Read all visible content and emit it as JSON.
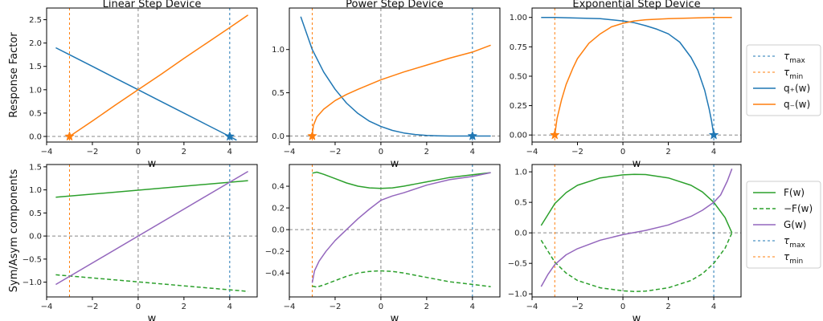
{
  "chart_data": [
    {
      "type": "line",
      "title": "Linear Step Device",
      "xlabel": "w",
      "ylabel": "Response Factor",
      "xlim": [
        -4,
        5.2
      ],
      "ylim": [
        -0.12,
        2.75
      ],
      "xticks": [
        -4,
        -2,
        0,
        2,
        4
      ],
      "xtick_labels": [
        "−4",
        "−2",
        "0",
        "2",
        "4"
      ],
      "yticks": [
        0,
        0.5,
        1,
        1.5,
        2,
        2.5
      ],
      "ytick_labels": [
        "0.0",
        "0.5",
        "1.0",
        "1.5",
        "2.0",
        "2.5"
      ],
      "tau_max": 4,
      "tau_min": -3,
      "series": [
        {
          "name": "q₊(w)",
          "color": "#1f77b4",
          "x": [
            -3.6,
            -3.0,
            -2.0,
            -1.0,
            0.0,
            1.0,
            2.0,
            3.0,
            4.0,
            4.3
          ],
          "y": [
            1.9,
            1.75,
            1.5,
            1.25,
            1.0,
            0.75,
            0.5,
            0.25,
            0.0,
            -0.08
          ]
        },
        {
          "name": "q₋(w)",
          "color": "#ff7f0e",
          "x": [
            -3.0,
            -2.0,
            -1.0,
            0.0,
            1.0,
            2.0,
            3.0,
            4.0,
            4.8
          ],
          "y": [
            0.0,
            0.33,
            0.67,
            1.0,
            1.33,
            1.67,
            2.0,
            2.33,
            2.6
          ]
        }
      ],
      "markers": [
        {
          "x": -3,
          "y": 0,
          "color": "#ff7f0e"
        },
        {
          "x": 4,
          "y": 0,
          "color": "#1f77b4"
        }
      ]
    },
    {
      "type": "line",
      "title": "Power Step Device",
      "xlabel": "w",
      "ylabel": "",
      "xlim": [
        -4,
        5.2
      ],
      "ylim": [
        -0.07,
        1.48
      ],
      "xticks": [
        -4,
        -2,
        0,
        2,
        4
      ],
      "xtick_labels": [
        "−4",
        "−2",
        "0",
        "2",
        "4"
      ],
      "yticks": [
        0,
        0.5,
        1
      ],
      "ytick_labels": [
        "0.0",
        "0.5",
        "1.0"
      ],
      "tau_max": 4,
      "tau_min": -3,
      "series": [
        {
          "name": "q₊(w)",
          "color": "#1f77b4",
          "x": [
            -3.5,
            -3.0,
            -2.5,
            -2.0,
            -1.5,
            -1.0,
            -0.5,
            0.0,
            0.5,
            1.0,
            1.5,
            2.0,
            2.5,
            3.0,
            3.5,
            4.0,
            4.8
          ],
          "y": [
            1.38,
            1.0,
            0.74,
            0.54,
            0.38,
            0.26,
            0.17,
            0.11,
            0.065,
            0.035,
            0.017,
            0.007,
            0.002,
            0.0,
            0.0,
            0.0,
            0.0
          ]
        },
        {
          "name": "q₋(w)",
          "color": "#ff7f0e",
          "x": [
            -3.0,
            -2.95,
            -2.8,
            -2.5,
            -2.0,
            -1.5,
            -1.0,
            0.0,
            1.0,
            2.0,
            3.0,
            4.0,
            4.8
          ],
          "y": [
            0.0,
            0.12,
            0.22,
            0.31,
            0.41,
            0.48,
            0.54,
            0.65,
            0.74,
            0.82,
            0.9,
            0.97,
            1.05
          ]
        }
      ],
      "markers": [
        {
          "x": -3,
          "y": 0,
          "color": "#ff7f0e"
        },
        {
          "x": 4,
          "y": 0,
          "color": "#1f77b4"
        }
      ]
    },
    {
      "type": "line",
      "title": "Exponential Step Device",
      "xlabel": "w",
      "ylabel": "",
      "xlim": [
        -4,
        5.2
      ],
      "ylim": [
        -0.06,
        1.08
      ],
      "xticks": [
        -4,
        -2,
        0,
        2,
        4
      ],
      "xtick_labels": [
        "−4",
        "−2",
        "0",
        "2",
        "4"
      ],
      "yticks": [
        0,
        0.25,
        0.5,
        0.75,
        1
      ],
      "ytick_labels": [
        "0.00",
        "0.25",
        "0.50",
        "0.75",
        "1.00"
      ],
      "tau_max": 4,
      "tau_min": -3,
      "series": [
        {
          "name": "q₊(w)",
          "color": "#1f77b4",
          "x": [
            -3.6,
            -3.0,
            -2.0,
            -1.0,
            0.0,
            0.5,
            1.0,
            1.5,
            2.0,
            2.5,
            3.0,
            3.3,
            3.6,
            3.8,
            3.9,
            4.0
          ],
          "y": [
            1.0,
            1.0,
            0.995,
            0.99,
            0.97,
            0.955,
            0.93,
            0.9,
            0.86,
            0.79,
            0.66,
            0.55,
            0.38,
            0.22,
            0.12,
            0.0
          ]
        },
        {
          "name": "q₋(w)",
          "color": "#ff7f0e",
          "x": [
            -3.0,
            -2.9,
            -2.7,
            -2.5,
            -2.2,
            -2.0,
            -1.5,
            -1.0,
            -0.5,
            0.0,
            0.5,
            1.0,
            2.0,
            3.0,
            4.0,
            4.8
          ],
          "y": [
            0.0,
            0.14,
            0.3,
            0.43,
            0.57,
            0.65,
            0.78,
            0.86,
            0.92,
            0.95,
            0.97,
            0.98,
            0.99,
            0.995,
            1.0,
            1.0
          ]
        }
      ],
      "markers": [
        {
          "x": -3,
          "y": 0,
          "color": "#ff7f0e"
        },
        {
          "x": 4,
          "y": 0,
          "color": "#1f77b4"
        }
      ]
    },
    {
      "type": "line",
      "title": "",
      "xlabel": "w",
      "ylabel": "Sym/Asym components",
      "xlim": [
        -4,
        5.2
      ],
      "ylim": [
        -1.32,
        1.55
      ],
      "xticks": [
        -4,
        -2,
        0,
        2,
        4
      ],
      "xtick_labels": [
        "−4",
        "−2",
        "0",
        "2",
        "4"
      ],
      "yticks": [
        -1,
        -0.5,
        0,
        0.5,
        1,
        1.5
      ],
      "ytick_labels": [
        "−1.0",
        "−0.5",
        "0.0",
        "0.5",
        "1.0",
        "1.5"
      ],
      "tau_max": 4,
      "tau_min": -3,
      "series": [
        {
          "name": "F(w)",
          "color": "#2ca02c",
          "dash": "",
          "x": [
            -3.6,
            4.8
          ],
          "y": [
            0.84,
            1.2
          ]
        },
        {
          "name": "−F(w)",
          "color": "#2ca02c",
          "dash": "5,3",
          "x": [
            -3.6,
            4.8
          ],
          "y": [
            -0.84,
            -1.2
          ]
        },
        {
          "name": "G(w)",
          "color": "#9467bd",
          "dash": "",
          "x": [
            -3.6,
            4.8
          ],
          "y": [
            -1.05,
            1.4
          ]
        }
      ]
    },
    {
      "type": "line",
      "title": "",
      "xlabel": "w",
      "ylabel": "",
      "xlim": [
        -4,
        5.2
      ],
      "ylim": [
        -0.62,
        0.6
      ],
      "xticks": [
        -4,
        -2,
        0,
        2,
        4
      ],
      "xtick_labels": [
        "−4",
        "−2",
        "0",
        "2",
        "4"
      ],
      "yticks": [
        -0.4,
        -0.2,
        0,
        0.2,
        0.4
      ],
      "ytick_labels": [
        "−0.4",
        "−0.2",
        "0.0",
        "0.2",
        "0.4"
      ],
      "tau_max": 4,
      "tau_min": -3,
      "series": [
        {
          "name": "F(w)",
          "color": "#2ca02c",
          "dash": "",
          "x": [
            -3.0,
            -2.8,
            -2.5,
            -2.0,
            -1.5,
            -1.0,
            -0.5,
            0.0,
            0.5,
            1.0,
            1.5,
            2.0,
            3.0,
            4.0,
            4.8
          ],
          "y": [
            0.52,
            0.53,
            0.51,
            0.47,
            0.43,
            0.4,
            0.385,
            0.38,
            0.385,
            0.4,
            0.42,
            0.44,
            0.48,
            0.505,
            0.525
          ]
        },
        {
          "name": "−F(w)",
          "color": "#2ca02c",
          "dash": "5,3",
          "x": [
            -3.0,
            -2.8,
            -2.5,
            -2.0,
            -1.5,
            -1.0,
            -0.5,
            0.0,
            0.5,
            1.0,
            1.5,
            2.0,
            3.0,
            4.0,
            4.8
          ],
          "y": [
            -0.52,
            -0.53,
            -0.51,
            -0.47,
            -0.43,
            -0.4,
            -0.385,
            -0.38,
            -0.385,
            -0.4,
            -0.42,
            -0.44,
            -0.48,
            -0.505,
            -0.525
          ]
        },
        {
          "name": "G(w)",
          "color": "#9467bd",
          "dash": "",
          "x": [
            -3.0,
            -2.9,
            -2.7,
            -2.4,
            -2.0,
            -1.5,
            -1.0,
            -0.5,
            0.0,
            0.5,
            1.0,
            2.0,
            3.0,
            4.0,
            4.8
          ],
          "y": [
            -0.49,
            -0.38,
            -0.29,
            -0.2,
            -0.1,
            0.0,
            0.1,
            0.19,
            0.27,
            0.31,
            0.34,
            0.41,
            0.46,
            0.49,
            0.525
          ]
        }
      ]
    },
    {
      "type": "line",
      "title": "",
      "xlabel": "w",
      "ylabel": "",
      "xlim": [
        -4,
        5.2
      ],
      "ylim": [
        -1.05,
        1.12
      ],
      "xticks": [
        -4,
        -2,
        0,
        2,
        4
      ],
      "xtick_labels": [
        "−4",
        "−2",
        "0",
        "2",
        "4"
      ],
      "yticks": [
        -1,
        -0.5,
        0,
        0.5,
        1
      ],
      "ytick_labels": [
        "−1.0",
        "−0.5",
        "0.0",
        "0.5",
        "1.0"
      ],
      "tau_max": 4,
      "tau_min": -3,
      "series": [
        {
          "name": "F(w)",
          "color": "#2ca02c",
          "dash": "",
          "x": [
            -3.6,
            -3.3,
            -3.0,
            -2.5,
            -2.0,
            -1.0,
            0.0,
            0.5,
            1.0,
            2.0,
            3.0,
            3.5,
            4.0,
            4.5,
            4.8
          ],
          "y": [
            0.12,
            0.3,
            0.48,
            0.66,
            0.78,
            0.9,
            0.95,
            0.96,
            0.955,
            0.9,
            0.78,
            0.67,
            0.5,
            0.25,
            0.0
          ]
        },
        {
          "name": "−F(w)",
          "color": "#2ca02c",
          "dash": "5,3",
          "x": [
            -3.6,
            -3.3,
            -3.0,
            -2.5,
            -2.0,
            -1.0,
            0.0,
            0.5,
            1.0,
            2.0,
            3.0,
            3.5,
            4.0,
            4.5,
            4.8
          ],
          "y": [
            -0.12,
            -0.3,
            -0.48,
            -0.66,
            -0.78,
            -0.9,
            -0.95,
            -0.96,
            -0.955,
            -0.9,
            -0.78,
            -0.67,
            -0.5,
            -0.25,
            0.0
          ]
        },
        {
          "name": "G(w)",
          "color": "#9467bd",
          "dash": "",
          "x": [
            -3.6,
            -3.3,
            -3.0,
            -2.5,
            -2.0,
            -1.0,
            0.0,
            1.0,
            2.0,
            3.0,
            3.5,
            4.0,
            4.3,
            4.6,
            4.8
          ],
          "y": [
            -0.88,
            -0.68,
            -0.52,
            -0.36,
            -0.26,
            -0.12,
            -0.03,
            0.04,
            0.13,
            0.27,
            0.37,
            0.5,
            0.62,
            0.85,
            1.05
          ]
        }
      ]
    }
  ],
  "legends": [
    {
      "items": [
        {
          "label": "τ",
          "sub": "max",
          "color": "#1f77b4",
          "dash": "3,3",
          "width": 1
        },
        {
          "label": "τ",
          "sub": "min",
          "color": "#ff7f0e",
          "dash": "3,3",
          "width": 1
        },
        {
          "label": "q₊(w)",
          "sub": "",
          "color": "#1f77b4",
          "dash": "",
          "width": 1.5
        },
        {
          "label": "q₋(w)",
          "sub": "",
          "color": "#ff7f0e",
          "dash": "",
          "width": 1.5
        }
      ]
    },
    {
      "items": [
        {
          "label": "F(w)",
          "sub": "",
          "color": "#2ca02c",
          "dash": "",
          "width": 1.5
        },
        {
          "label": "−F(w)",
          "sub": "",
          "color": "#2ca02c",
          "dash": "5,3",
          "width": 1.5
        },
        {
          "label": "G(w)",
          "sub": "",
          "color": "#9467bd",
          "dash": "",
          "width": 1.5
        },
        {
          "label": "τ",
          "sub": "max",
          "color": "#1f77b4",
          "dash": "3,3",
          "width": 1
        },
        {
          "label": "τ",
          "sub": "min",
          "color": "#ff7f0e",
          "dash": "3,3",
          "width": 1
        }
      ]
    }
  ]
}
